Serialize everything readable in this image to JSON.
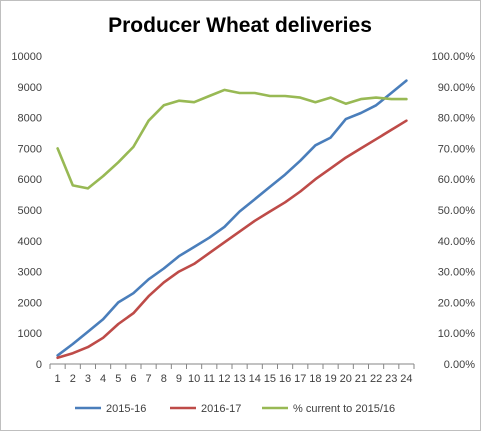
{
  "chart_data": {
    "type": "line",
    "title": "Producer Wheat deliveries",
    "xlabel": "",
    "ylabel": "",
    "x": [
      1,
      2,
      3,
      4,
      5,
      6,
      7,
      8,
      9,
      10,
      11,
      12,
      13,
      14,
      15,
      16,
      17,
      18,
      19,
      20,
      21,
      22,
      23,
      24
    ],
    "ylim": [
      0,
      10000
    ],
    "y_ticks": [
      0,
      1000,
      2000,
      3000,
      4000,
      5000,
      6000,
      7000,
      8000,
      9000,
      10000
    ],
    "y2lim": [
      0,
      1
    ],
    "y2_ticks": [
      "0.00%",
      "10.00%",
      "20.00%",
      "30.00%",
      "40.00%",
      "50.00%",
      "60.00%",
      "70.00%",
      "80.00%",
      "90.00%",
      "100.00%"
    ],
    "grid": false,
    "legend_position": "bottom",
    "series": [
      {
        "name": "2015-16",
        "axis": "left",
        "color": "#4a7ebb",
        "values": [
          280,
          650,
          1050,
          1450,
          2000,
          2300,
          2750,
          3100,
          3500,
          3800,
          4100,
          4450,
          4950,
          5350,
          5750,
          6150,
          6600,
          7100,
          7350,
          7950,
          8150,
          8400,
          8800,
          9200
        ]
      },
      {
        "name": "2016-17",
        "axis": "left",
        "color": "#be4b48",
        "values": [
          200,
          350,
          550,
          850,
          1300,
          1650,
          2200,
          2650,
          3000,
          3250,
          3600,
          3950,
          4300,
          4650,
          4950,
          5250,
          5600,
          6000,
          6350,
          6700,
          7000,
          7300,
          7600,
          7900
        ]
      },
      {
        "name": "% current to 2015/16",
        "axis": "right",
        "color": "#98b954",
        "values": [
          0.7,
          0.58,
          0.57,
          0.61,
          0.655,
          0.705,
          0.79,
          0.84,
          0.855,
          0.85,
          0.87,
          0.89,
          0.88,
          0.88,
          0.87,
          0.87,
          0.865,
          0.85,
          0.865,
          0.845,
          0.86,
          0.865,
          0.86,
          0.86
        ]
      }
    ]
  }
}
